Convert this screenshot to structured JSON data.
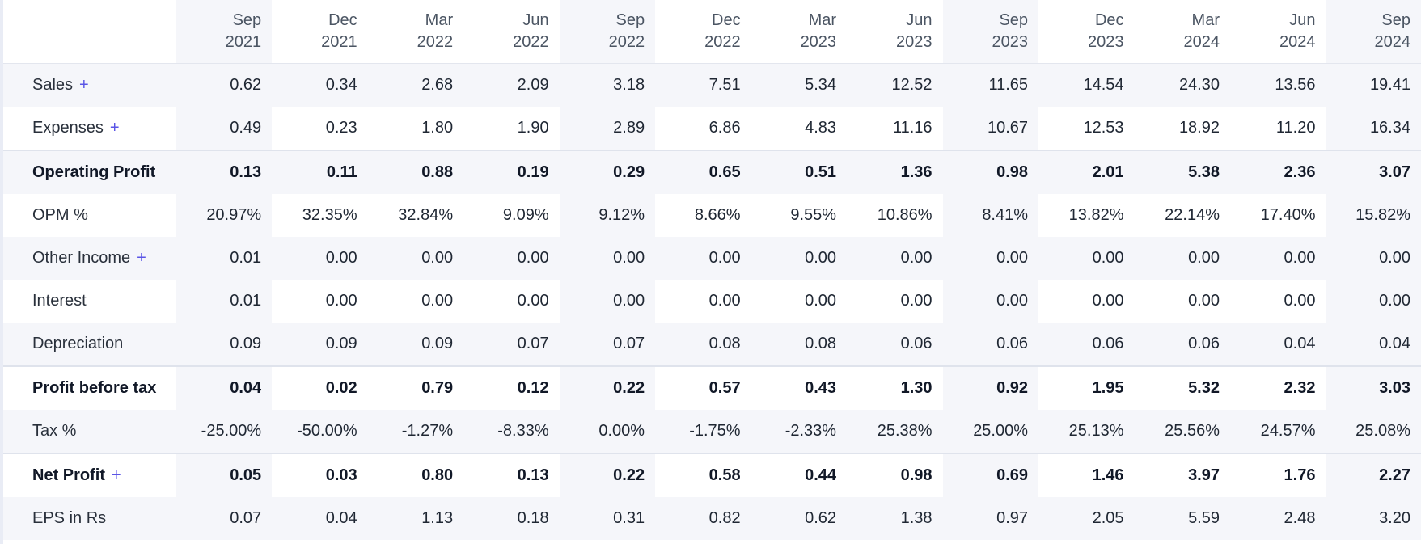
{
  "periods": [
    {
      "month": "Sep",
      "year": "2021"
    },
    {
      "month": "Dec",
      "year": "2021"
    },
    {
      "month": "Mar",
      "year": "2022"
    },
    {
      "month": "Jun",
      "year": "2022"
    },
    {
      "month": "Sep",
      "year": "2022"
    },
    {
      "month": "Dec",
      "year": "2022"
    },
    {
      "month": "Mar",
      "year": "2023"
    },
    {
      "month": "Jun",
      "year": "2023"
    },
    {
      "month": "Sep",
      "year": "2023"
    },
    {
      "month": "Dec",
      "year": "2023"
    },
    {
      "month": "Mar",
      "year": "2024"
    },
    {
      "month": "Jun",
      "year": "2024"
    },
    {
      "month": "Sep",
      "year": "2024"
    }
  ],
  "expand_symbol": "+",
  "rows": [
    {
      "label": "Sales",
      "expandable": true,
      "bold": false,
      "values": [
        "0.62",
        "0.34",
        "2.68",
        "2.09",
        "3.18",
        "7.51",
        "5.34",
        "12.52",
        "11.65",
        "14.54",
        "24.30",
        "13.56",
        "19.41"
      ]
    },
    {
      "label": "Expenses",
      "expandable": true,
      "bold": false,
      "values": [
        "0.49",
        "0.23",
        "1.80",
        "1.90",
        "2.89",
        "6.86",
        "4.83",
        "11.16",
        "10.67",
        "12.53",
        "18.92",
        "11.20",
        "16.34"
      ]
    },
    {
      "label": "Operating Profit",
      "expandable": false,
      "bold": true,
      "values": [
        "0.13",
        "0.11",
        "0.88",
        "0.19",
        "0.29",
        "0.65",
        "0.51",
        "1.36",
        "0.98",
        "2.01",
        "5.38",
        "2.36",
        "3.07"
      ]
    },
    {
      "label": "OPM %",
      "expandable": false,
      "bold": false,
      "values": [
        "20.97%",
        "32.35%",
        "32.84%",
        "9.09%",
        "9.12%",
        "8.66%",
        "9.55%",
        "10.86%",
        "8.41%",
        "13.82%",
        "22.14%",
        "17.40%",
        "15.82%"
      ]
    },
    {
      "label": "Other Income",
      "expandable": true,
      "bold": false,
      "values": [
        "0.01",
        "0.00",
        "0.00",
        "0.00",
        "0.00",
        "0.00",
        "0.00",
        "0.00",
        "0.00",
        "0.00",
        "0.00",
        "0.00",
        "0.00"
      ]
    },
    {
      "label": "Interest",
      "expandable": false,
      "bold": false,
      "values": [
        "0.01",
        "0.00",
        "0.00",
        "0.00",
        "0.00",
        "0.00",
        "0.00",
        "0.00",
        "0.00",
        "0.00",
        "0.00",
        "0.00",
        "0.00"
      ]
    },
    {
      "label": "Depreciation",
      "expandable": false,
      "bold": false,
      "values": [
        "0.09",
        "0.09",
        "0.09",
        "0.07",
        "0.07",
        "0.08",
        "0.08",
        "0.06",
        "0.06",
        "0.06",
        "0.06",
        "0.04",
        "0.04"
      ]
    },
    {
      "label": "Profit before tax",
      "expandable": false,
      "bold": true,
      "values": [
        "0.04",
        "0.02",
        "0.79",
        "0.12",
        "0.22",
        "0.57",
        "0.43",
        "1.30",
        "0.92",
        "1.95",
        "5.32",
        "2.32",
        "3.03"
      ]
    },
    {
      "label": "Tax %",
      "expandable": false,
      "bold": false,
      "values": [
        "-25.00%",
        "-50.00%",
        "-1.27%",
        "-8.33%",
        "0.00%",
        "-1.75%",
        "-2.33%",
        "25.38%",
        "25.00%",
        "25.13%",
        "25.56%",
        "24.57%",
        "25.08%"
      ]
    },
    {
      "label": "Net Profit",
      "expandable": true,
      "bold": true,
      "values": [
        "0.05",
        "0.03",
        "0.80",
        "0.13",
        "0.22",
        "0.58",
        "0.44",
        "0.98",
        "0.69",
        "1.46",
        "3.97",
        "1.76",
        "2.27"
      ]
    },
    {
      "label": "EPS in Rs",
      "expandable": false,
      "bold": false,
      "values": [
        "0.07",
        "0.04",
        "1.13",
        "0.18",
        "0.31",
        "0.82",
        "0.62",
        "1.38",
        "0.97",
        "2.05",
        "5.59",
        "2.48",
        "3.20"
      ]
    }
  ]
}
